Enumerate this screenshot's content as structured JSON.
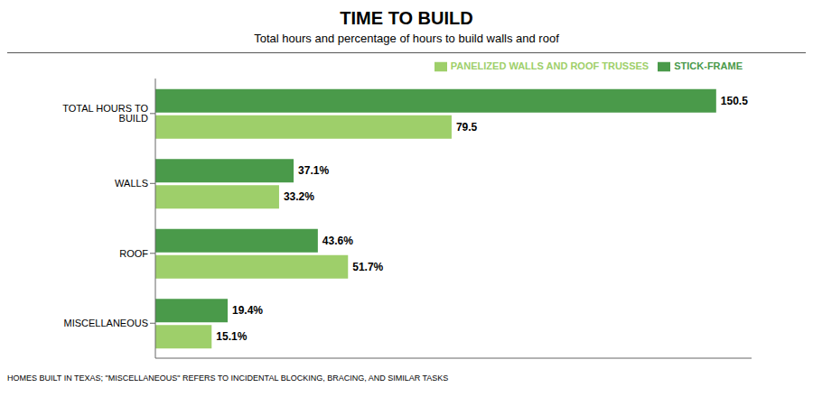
{
  "chart_data": {
    "type": "bar",
    "orientation": "horizontal",
    "title": "TIME TO BUILD",
    "subtitle": "Total hours and percentage of hours to build walls and roof",
    "annotations": [
      "HOMES BUILT IN TEXAS; \"MISCELLANEOUS\" REFERS TO INCIDENTAL BLOCKING, BRACING, AND SIMILAR TASKS"
    ],
    "categories": [
      "TOTAL HOURS TO BUILD",
      "WALLS",
      "ROOF",
      "MISCELLANEOUS"
    ],
    "series": [
      {
        "name": "STICK-FRAME",
        "color": "#4a9a4a",
        "values": [
          150.5,
          37.1,
          43.6,
          19.4
        ],
        "value_labels": [
          "150.5",
          "37.1%",
          "43.6%",
          "19.4%"
        ]
      },
      {
        "name": "PANELIZED WALLS AND ROOF TRUSSES",
        "color": "#9ecf6a",
        "values": [
          79.5,
          33.2,
          51.7,
          15.1
        ],
        "value_labels": [
          "79.5",
          "33.2%",
          "51.7%",
          "15.1%"
        ]
      }
    ],
    "xlim": [
      0,
      160
    ],
    "tick_labels": "y",
    "data_labels": true,
    "legend": "upper right",
    "grid": false
  }
}
